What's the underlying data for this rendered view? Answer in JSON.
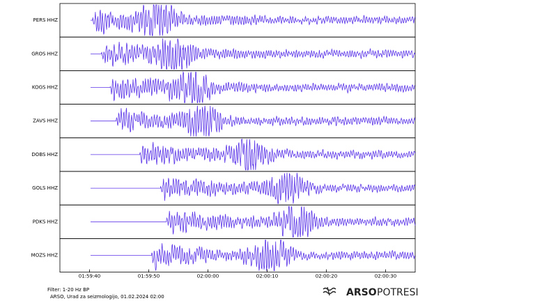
{
  "chart_data": {
    "type": "seismogram",
    "color": "#5b35e8",
    "xlim": [
      7175,
      7235
    ],
    "xticks": [
      {
        "value": 7180,
        "label": "01:59:40"
      },
      {
        "value": 7190,
        "label": "01:59:50"
      },
      {
        "value": 7200,
        "label": "02:00:00"
      },
      {
        "value": 7210,
        "label": "02:00:10"
      },
      {
        "value": 7220,
        "label": "02:00:20"
      },
      {
        "value": 7230,
        "label": "02:00:30"
      }
    ],
    "series": [
      {
        "name": "PERS HHZ",
        "onset": 7180.5
      },
      {
        "name": "GROS HHZ",
        "onset": 7182
      },
      {
        "name": "KOGS HHZ",
        "onset": 7183.5
      },
      {
        "name": "ZAVS HHZ",
        "onset": 7184.5
      },
      {
        "name": "DOBS HHZ",
        "onset": 7188.5
      },
      {
        "name": "GOLS HHZ",
        "onset": 7192
      },
      {
        "name": "PDKS HHZ",
        "onset": 7193
      },
      {
        "name": "MOZS HHZ",
        "onset": 7190.5
      }
    ],
    "footer": {
      "filter": "Filter: 1-20 Hz BP",
      "credit": "ARSO, Urad za seizmologijo, 01.02.2024  02:00"
    },
    "logo": {
      "brand": "ARSO",
      "product": "POTRESI"
    }
  }
}
